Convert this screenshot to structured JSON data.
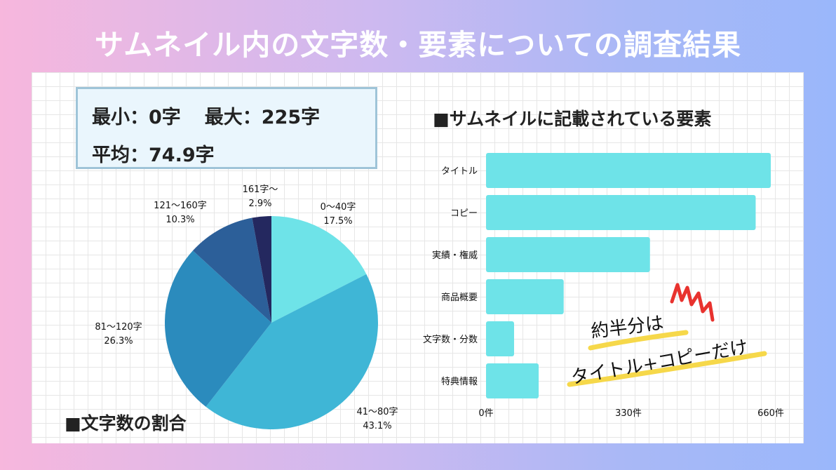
{
  "title": "サムネイル内の文字数・要素についての調査結果",
  "stats": {
    "min_label": "最小：0字",
    "max_label": "最大：225字",
    "avg_label": "平均：74.9字"
  },
  "pie_title": "■文字数の割合",
  "bar_title": "■サムネイルに記載されている要素",
  "annotation": {
    "line1": "約半分は",
    "line2": "タイトル+コピーだけ"
  },
  "colors": {
    "bar": "#6ee3e8",
    "pie": [
      "#6ee3e8",
      "#3fb6d6",
      "#2b8bbd",
      "#2c5f99",
      "#24285f"
    ],
    "accent_red": "#e8322e",
    "highlight_yellow": "#f6d84a"
  },
  "chart_data": [
    {
      "type": "pie",
      "title": "■文字数の割合",
      "slices": [
        {
          "label": "0〜40字",
          "pct_label": "17.5%",
          "value": 17.5
        },
        {
          "label": "41〜80字",
          "pct_label": "43.1%",
          "value": 43.1
        },
        {
          "label": "81〜120字",
          "pct_label": "26.3%",
          "value": 26.3
        },
        {
          "label": "121〜160字",
          "pct_label": "10.3%",
          "value": 10.3
        },
        {
          "label": "161字〜",
          "pct_label": "2.9%",
          "value": 2.9
        }
      ]
    },
    {
      "type": "bar",
      "orientation": "horizontal",
      "title": "■サムネイルに記載されている要素",
      "categories": [
        "タイトル",
        "コピー",
        "実績・権威",
        "商品概要",
        "文字数・分数",
        "特典情報"
      ],
      "values": [
        660,
        625,
        380,
        180,
        65,
        122
      ],
      "xlim": [
        0,
        660
      ],
      "xticks": [
        "0件",
        "330件",
        "660件"
      ],
      "grid": true
    }
  ]
}
